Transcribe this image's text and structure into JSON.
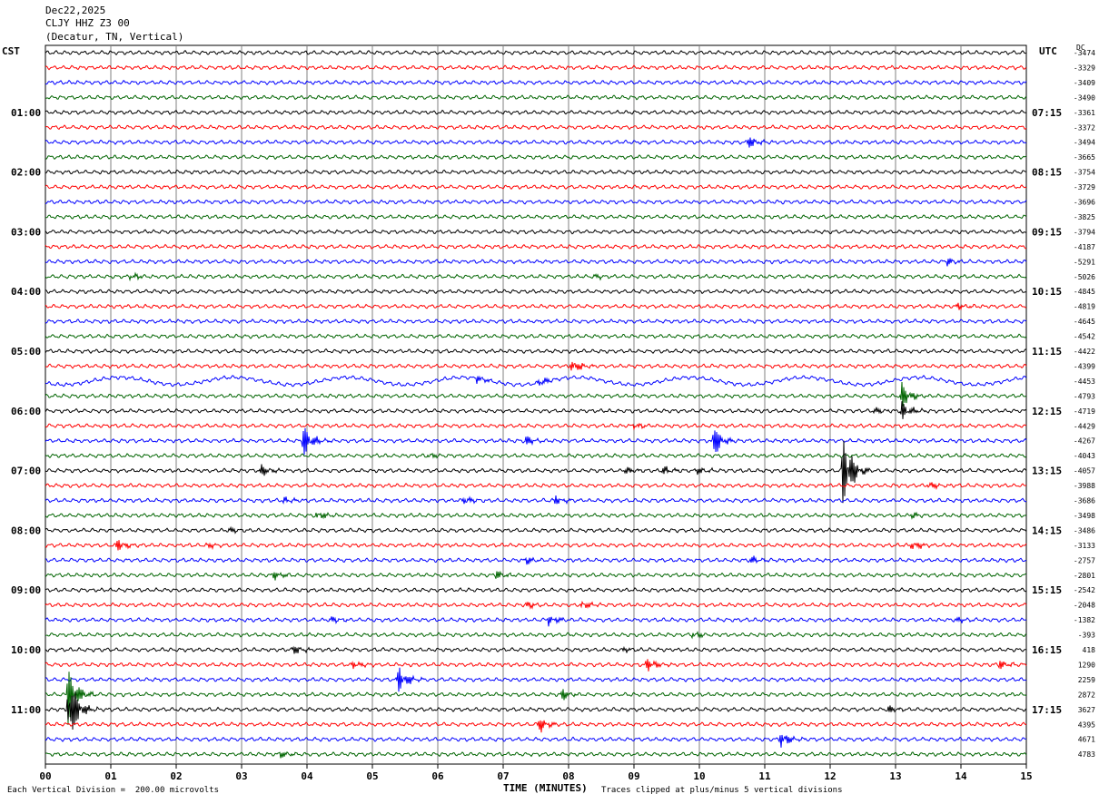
{
  "header": {
    "date": "Dec22,2025",
    "station": "CLJY HHZ Z3 00",
    "location": "(Decatur, TN, Vertical)"
  },
  "left_tz": "CST",
  "right_tz": "UTC",
  "dc_label": "DC",
  "footer": {
    "division": "Each Vertical Division =  200.00 microvolts",
    "xlabel": "TIME (MINUTES)",
    "clip_note": "Traces clipped at plus/minus 5 vertical divisions"
  },
  "colors": {
    "black": "#000000",
    "red": "#ff0000",
    "blue": "#0000ff",
    "green": "#006400",
    "grid": "#808080"
  },
  "chart_data": {
    "type": "line",
    "xlim": [
      0,
      15
    ],
    "x_ticks": [
      "00",
      "01",
      "02",
      "03",
      "04",
      "05",
      "06",
      "07",
      "08",
      "09",
      "10",
      "11",
      "12",
      "13",
      "14",
      "15"
    ],
    "traces_per_hour": 4,
    "left_hour_labels": [
      "01:00",
      "02:00",
      "03:00",
      "04:00",
      "05:00",
      "06:00",
      "07:00",
      "08:00",
      "09:00",
      "10:00",
      "11:00"
    ],
    "right_hour_labels": [
      "07:15",
      "08:15",
      "09:15",
      "10:15",
      "11:15",
      "12:15",
      "13:15",
      "14:15",
      "15:15",
      "16:15",
      "17:15"
    ],
    "dc_offsets": [
      "-3474",
      "-3329",
      "-3409",
      "-3490",
      "-3361",
      "-3372",
      "-3494",
      "-3665",
      "-3754",
      "-3729",
      "-3696",
      "-3825",
      "-3794",
      "-4187",
      "-5291",
      "-5026",
      "-4845",
      "-4819",
      "-4645",
      "-4542",
      "-4422",
      "-4399",
      "-4453",
      "-4793",
      "-4719",
      "-4429",
      "-4267",
      "-4043",
      "-4057",
      "-3988",
      "-3686",
      "-3498",
      "-3486",
      "-3133",
      "-2757",
      "-2801",
      "-2542",
      "-2048",
      "-1382",
      "-393",
      "418",
      "1290",
      "2259",
      "2872",
      "3627",
      "4395",
      "4671",
      "4783"
    ],
    "events": [
      {
        "trace": 6,
        "minute": 10.75,
        "amp": 8
      },
      {
        "trace": 14,
        "minute": 13.8,
        "amp": 5
      },
      {
        "trace": 15,
        "minute": 1.3,
        "amp": 6
      },
      {
        "trace": 15,
        "minute": 8.4,
        "amp": 3
      },
      {
        "trace": 17,
        "minute": 13.95,
        "amp": 4
      },
      {
        "trace": 21,
        "minute": 8.05,
        "amp": 12
      },
      {
        "trace": 22,
        "minute": 6.6,
        "amp": 6
      },
      {
        "trace": 22,
        "minute": 7.55,
        "amp": 7
      },
      {
        "trace": 23,
        "minute": 13.1,
        "amp": 18
      },
      {
        "trace": 24,
        "minute": 13.1,
        "amp": 12
      },
      {
        "trace": 24,
        "minute": 12.65,
        "amp": 5
      },
      {
        "trace": 25,
        "minute": 9.0,
        "amp": 5
      },
      {
        "trace": 26,
        "minute": 3.95,
        "amp": 24
      },
      {
        "trace": 26,
        "minute": 10.2,
        "amp": 26
      },
      {
        "trace": 26,
        "minute": 7.35,
        "amp": 6
      },
      {
        "trace": 27,
        "minute": 5.85,
        "amp": 4
      },
      {
        "trace": 28,
        "minute": 12.2,
        "amp": 60
      },
      {
        "trace": 28,
        "minute": 3.3,
        "amp": 7
      },
      {
        "trace": 28,
        "minute": 9.45,
        "amp": 6
      },
      {
        "trace": 28,
        "minute": 8.85,
        "amp": 6
      },
      {
        "trace": 28,
        "minute": 9.95,
        "amp": 5
      },
      {
        "trace": 29,
        "minute": 13.5,
        "amp": 6
      },
      {
        "trace": 30,
        "minute": 3.65,
        "amp": 5
      },
      {
        "trace": 30,
        "minute": 6.4,
        "amp": 6
      },
      {
        "trace": 30,
        "minute": 7.8,
        "amp": 6
      },
      {
        "trace": 31,
        "minute": 4.15,
        "amp": 7
      },
      {
        "trace": 31,
        "minute": 13.25,
        "amp": 4
      },
      {
        "trace": 32,
        "minute": 2.8,
        "amp": 4
      },
      {
        "trace": 33,
        "minute": 1.1,
        "amp": 9
      },
      {
        "trace": 33,
        "minute": 2.45,
        "amp": 4
      },
      {
        "trace": 33,
        "minute": 13.25,
        "amp": 7
      },
      {
        "trace": 34,
        "minute": 7.35,
        "amp": 5
      },
      {
        "trace": 34,
        "minute": 10.8,
        "amp": 5
      },
      {
        "trace": 35,
        "minute": 3.5,
        "amp": 7
      },
      {
        "trace": 35,
        "minute": 6.9,
        "amp": 5
      },
      {
        "trace": 37,
        "minute": 7.35,
        "amp": 5
      },
      {
        "trace": 37,
        "minute": 8.2,
        "amp": 6
      },
      {
        "trace": 38,
        "minute": 7.7,
        "amp": 8
      },
      {
        "trace": 38,
        "minute": 4.35,
        "amp": 5
      },
      {
        "trace": 38,
        "minute": 13.9,
        "amp": 5
      },
      {
        "trace": 39,
        "minute": 9.9,
        "amp": 5
      },
      {
        "trace": 40,
        "minute": 3.8,
        "amp": 6
      },
      {
        "trace": 40,
        "minute": 8.8,
        "amp": 4
      },
      {
        "trace": 41,
        "minute": 9.2,
        "amp": 10
      },
      {
        "trace": 41,
        "minute": 4.7,
        "amp": 6
      },
      {
        "trace": 41,
        "minute": 14.6,
        "amp": 6
      },
      {
        "trace": 42,
        "minute": 5.4,
        "amp": 20
      },
      {
        "trace": 43,
        "minute": 0.35,
        "amp": 40
      },
      {
        "trace": 43,
        "minute": 7.9,
        "amp": 7
      },
      {
        "trace": 44,
        "minute": 0.35,
        "amp": 60
      },
      {
        "trace": 44,
        "minute": 12.9,
        "amp": 5
      },
      {
        "trace": 45,
        "minute": 7.55,
        "amp": 10
      },
      {
        "trace": 46,
        "minute": 11.25,
        "amp": 13
      },
      {
        "trace": 47,
        "minute": 3.6,
        "amp": 5
      }
    ]
  }
}
